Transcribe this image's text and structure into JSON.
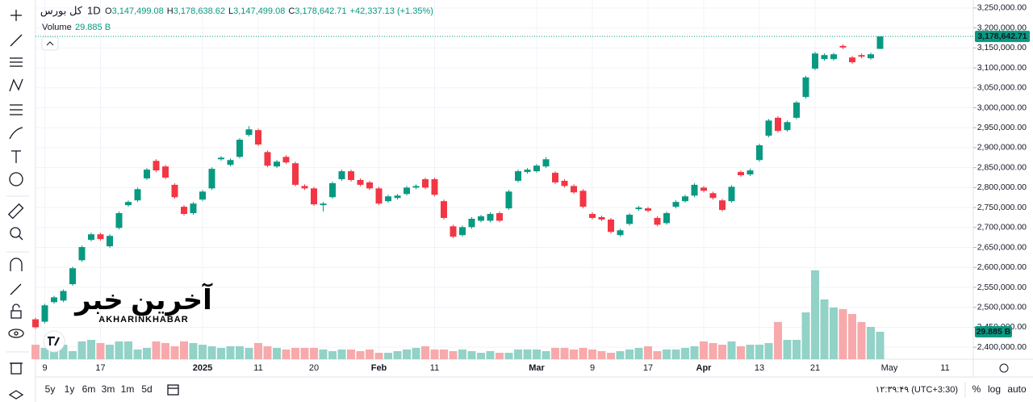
{
  "header": {
    "symbol": "کل بورس",
    "interval": "1D",
    "ohlc": [
      {
        "key": "O",
        "text": "3,147,499.08"
      },
      {
        "key": "H",
        "text": "3,178,638.62"
      },
      {
        "key": "L",
        "text": "3,147,499.08"
      },
      {
        "key": "C",
        "text": "3,178,642.71"
      }
    ],
    "change": "+42,337.13 (+1.35%)",
    "volume_name": "Volume",
    "volume_text": "29.885 B"
  },
  "chart_data": {
    "type": "candlestick",
    "up_color": "#089981",
    "down_color": "#f23645",
    "volume_up_color": "#92d2c7",
    "volume_down_color": "#f7a9ab",
    "categories": [
      null,
      "9",
      null,
      null,
      null,
      null,
      null,
      "17",
      null,
      null,
      null,
      null,
      null,
      null,
      null,
      null,
      null,
      null,
      "2025",
      null,
      null,
      null,
      null,
      null,
      "11",
      null,
      null,
      null,
      null,
      null,
      "20",
      null,
      null,
      null,
      null,
      null,
      null,
      "Feb",
      null,
      null,
      null,
      null,
      null,
      "11",
      null,
      null,
      null,
      null,
      null,
      null,
      null,
      null,
      null,
      null,
      "Mar",
      null,
      null,
      null,
      null,
      null,
      "9",
      null,
      null,
      null,
      null,
      null,
      "17",
      null,
      null,
      null,
      null,
      null,
      "Apr",
      null,
      null,
      null,
      null,
      null,
      "13",
      null,
      null,
      null,
      null,
      null,
      "21",
      null,
      null,
      null,
      null,
      null,
      null,
      null
    ],
    "future_categories": [
      "May",
      "11"
    ],
    "open": [
      2470000,
      2464000,
      2513000,
      2517000,
      2558000,
      2618000,
      2669000,
      2683000,
      2653000,
      2699000,
      2756000,
      2768000,
      2823000,
      2867000,
      2853000,
      2807000,
      2752000,
      2736000,
      2770000,
      2798000,
      2871000,
      2857000,
      2877000,
      2932000,
      2944000,
      2889000,
      2853000,
      2877000,
      2861000,
      2804000,
      2798000,
      2756000,
      2776000,
      2821000,
      2841000,
      2819000,
      2813000,
      2798000,
      2766000,
      2774000,
      2784000,
      2800000,
      2821000,
      2821000,
      2766000,
      2703000,
      2681000,
      2701000,
      2717000,
      2717000,
      2736000,
      2748000,
      2817000,
      2839000,
      2841000,
      2853000,
      2837000,
      2817000,
      2804000,
      2792000,
      2734000,
      2726000,
      2720000,
      2681000,
      2709000,
      2746000,
      2748000,
      2724000,
      2711000,
      2752000,
      2766000,
      2780000,
      2800000,
      2786000,
      2768000,
      2766000,
      2839000,
      2833000,
      2869000,
      2930000,
      2975000,
      2944000,
      2975000,
      3027000,
      3098000,
      3122000,
      3122000,
      3155000,
      3126000,
      3132000,
      3124000,
      3147499.08
    ],
    "high": [
      2474000,
      2509000,
      2529000,
      2545000,
      2602000,
      2655000,
      2687000,
      2687000,
      2683000,
      2740000,
      2768000,
      2800000,
      2849000,
      2871000,
      2857000,
      2811000,
      2756000,
      2764000,
      2794000,
      2851000,
      2879000,
      2873000,
      2924000,
      2954000,
      2948000,
      2893000,
      2869000,
      2881000,
      2865000,
      2808000,
      2802000,
      2764000,
      2815000,
      2845000,
      2845000,
      2823000,
      2817000,
      2802000,
      2782000,
      2784000,
      2804000,
      2808000,
      2825000,
      2825000,
      2770000,
      2707000,
      2705000,
      2726000,
      2732000,
      2738000,
      2740000,
      2794000,
      2845000,
      2849000,
      2859000,
      2877000,
      2841000,
      2821000,
      2808000,
      2796000,
      2738000,
      2730000,
      2724000,
      2697000,
      2736000,
      2754000,
      2752000,
      2728000,
      2740000,
      2768000,
      2782000,
      2811000,
      2804000,
      2790000,
      2772000,
      2806000,
      2843000,
      2847000,
      2910000,
      2972000,
      2979000,
      2968000,
      3017000,
      3080000,
      3140000,
      3136000,
      3138000,
      3159000,
      3130000,
      3136000,
      3138000,
      3178638.62
    ],
    "low": [
      2446000,
      2460000,
      2509000,
      2513000,
      2554000,
      2614000,
      2665000,
      2667000,
      2649000,
      2695000,
      2752000,
      2764000,
      2819000,
      2839000,
      2821000,
      2772000,
      2730000,
      2732000,
      2766000,
      2794000,
      2867000,
      2853000,
      2873000,
      2928000,
      2904000,
      2851000,
      2849000,
      2859000,
      2803000,
      2794000,
      2754000,
      2740000,
      2772000,
      2817000,
      2815000,
      2803000,
      2794000,
      2756000,
      2762000,
      2770000,
      2780000,
      2796000,
      2796000,
      2778000,
      2720000,
      2673000,
      2677000,
      2697000,
      2713000,
      2713000,
      2713000,
      2744000,
      2813000,
      2835000,
      2837000,
      2849000,
      2809000,
      2800000,
      2784000,
      2748000,
      2720000,
      2716000,
      2685000,
      2677000,
      2705000,
      2742000,
      2738000,
      2703000,
      2707000,
      2748000,
      2762000,
      2776000,
      2788000,
      2770000,
      2740000,
      2762000,
      2827000,
      2829000,
      2865000,
      2926000,
      2938000,
      2940000,
      2971000,
      3023000,
      3094000,
      3118000,
      3118000,
      3147000,
      3110000,
      3124000,
      3120000,
      3147499.08
    ],
    "close": [
      2450000,
      2505000,
      2525000,
      2541000,
      2598000,
      2651000,
      2683000,
      2671000,
      2679000,
      2736000,
      2764000,
      2796000,
      2845000,
      2843000,
      2825000,
      2776000,
      2734000,
      2760000,
      2790000,
      2847000,
      2875000,
      2869000,
      2920000,
      2946000,
      2908000,
      2855000,
      2865000,
      2863000,
      2807000,
      2798000,
      2758000,
      2760000,
      2811000,
      2841000,
      2819000,
      2807000,
      2798000,
      2760000,
      2778000,
      2780000,
      2800000,
      2804000,
      2800000,
      2782000,
      2724000,
      2677000,
      2701000,
      2722000,
      2728000,
      2734000,
      2717000,
      2790000,
      2841000,
      2845000,
      2855000,
      2871000,
      2813000,
      2804000,
      2788000,
      2752000,
      2724000,
      2720000,
      2689000,
      2693000,
      2732000,
      2750000,
      2742000,
      2707000,
      2736000,
      2764000,
      2778000,
      2807000,
      2792000,
      2774000,
      2744000,
      2802000,
      2831000,
      2843000,
      2906000,
      2968000,
      2942000,
      2964000,
      3013000,
      3076000,
      3136000,
      3132000,
      3134000,
      3151000,
      3114000,
      3128000,
      3134000,
      3178642.71
    ],
    "volume": {
      "name": "Volume",
      "values": [
        15.8,
        12.3,
        14.1,
        15.8,
        8.8,
        19.4,
        21.1,
        17.6,
        15.8,
        19.4,
        19.4,
        10.6,
        12.3,
        19.4,
        17.6,
        14.1,
        19.4,
        17.6,
        15.8,
        14.1,
        12.3,
        14.1,
        14.1,
        12.3,
        17.6,
        14.1,
        12.3,
        10.6,
        12.3,
        12.3,
        12.3,
        10.6,
        8.8,
        10.6,
        10.6,
        8.8,
        10.6,
        7,
        7,
        8.8,
        10.6,
        12.3,
        14.1,
        10.6,
        10.6,
        8.8,
        10.6,
        8.8,
        7,
        8.8,
        7,
        7,
        10.6,
        10.6,
        10.6,
        8.8,
        12.3,
        12.3,
        10.6,
        12.3,
        10.6,
        8.8,
        7,
        8.8,
        10.6,
        12.3,
        14.1,
        8.8,
        10.6,
        10.6,
        12.3,
        14.1,
        19.4,
        17.6,
        15.8,
        19.4,
        14.1,
        15.8,
        15.8,
        17.6,
        40.5,
        21.1,
        21.1,
        51,
        96.8,
        65.1,
        56.3,
        54.6,
        49.3,
        40.5,
        35.2,
        29.885
      ],
      "last_label": "29.885 B"
    },
    "last_price_label": "3,178,642.71",
    "ylim": [
      2370000,
      3270000
    ],
    "yticks": [
      {
        "value": 3250000,
        "label": "3,250,000.00"
      },
      {
        "value": 3200000,
        "label": "3,200,000.00"
      },
      {
        "value": 3150000,
        "label": "3,150,000.00"
      },
      {
        "value": 3100000,
        "label": "3,100,000.00"
      },
      {
        "value": 3050000,
        "label": "3,050,000.00"
      },
      {
        "value": 3000000,
        "label": "3,000,000.00"
      },
      {
        "value": 2950000,
        "label": "2,950,000.00"
      },
      {
        "value": 2900000,
        "label": "2,900,000.00"
      },
      {
        "value": 2850000,
        "label": "2,850,000.00"
      },
      {
        "value": 2800000,
        "label": "2,800,000.00"
      },
      {
        "value": 2750000,
        "label": "2,750,000.00"
      },
      {
        "value": 2700000,
        "label": "2,700,000.00"
      },
      {
        "value": 2650000,
        "label": "2,650,000.00"
      },
      {
        "value": 2600000,
        "label": "2,600,000.00"
      },
      {
        "value": 2550000,
        "label": "2,550,000.00"
      },
      {
        "value": 2500000,
        "label": "2,500,000.00"
      },
      {
        "value": 2450000,
        "label": "2,450,000.00"
      },
      {
        "value": 2400000,
        "label": "2,400,000.00"
      }
    ],
    "grid": true
  },
  "watermark": {
    "logo": "آخرین خبر",
    "name": "AKHARINKHABAR"
  },
  "bottom_bar": {
    "ranges": [
      "5y",
      "1y",
      "6m",
      "3m",
      "1m",
      "5d"
    ],
    "time": "۱۲:۳۹:۴۹ (UTC+3:30)",
    "options": [
      "%",
      "log",
      "auto"
    ]
  }
}
